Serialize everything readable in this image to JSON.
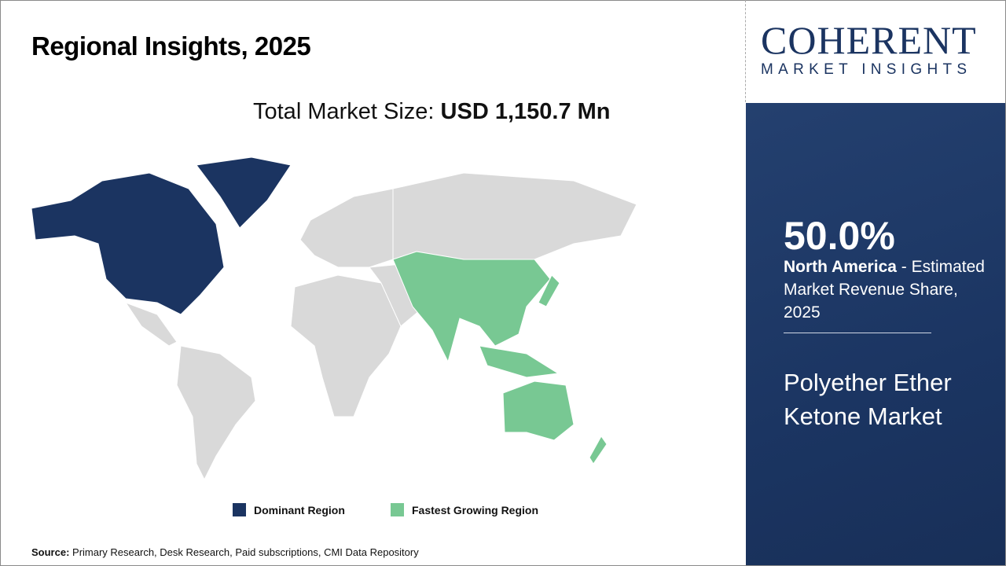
{
  "header": {
    "title": "Regional Insights, 2025",
    "total_label": "Total Market Size: ",
    "total_value": "USD 1,150.7 Mn"
  },
  "logo": {
    "line1": "COHERENT",
    "line2": "MARKET INSIGHTS"
  },
  "panel": {
    "share": "50.0%",
    "region": "North America",
    "desc_rest": " - Estimated Market Revenue Share, 2025",
    "market": "Polyether Ether Ketone Market"
  },
  "legend": [
    {
      "label": "Dominant Region",
      "color": "#1b3461"
    },
    {
      "label": "Fastest Growing Region",
      "color": "#78c893"
    }
  ],
  "map": {
    "dominant_regions": [
      "North America"
    ],
    "fastest_growing_regions": [
      "Asia Pacific"
    ],
    "other_color": "#d9d9d9"
  },
  "source": {
    "label": "Source:",
    "text": " Primary Research, Desk Research, Paid subscriptions, CMI Data Repository"
  }
}
